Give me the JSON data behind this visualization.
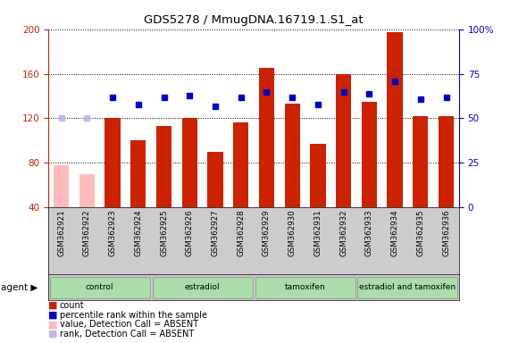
{
  "title": "GDS5278 / MmugDNA.16719.1.S1_at",
  "samples": [
    "GSM362921",
    "GSM362922",
    "GSM362923",
    "GSM362924",
    "GSM362925",
    "GSM362926",
    "GSM362927",
    "GSM362928",
    "GSM362929",
    "GSM362930",
    "GSM362931",
    "GSM362932",
    "GSM362933",
    "GSM362934",
    "GSM362935",
    "GSM362936"
  ],
  "counts": [
    78,
    70,
    120,
    100,
    113,
    120,
    90,
    116,
    165,
    133,
    97,
    160,
    135,
    197,
    122,
    122
  ],
  "ranks": [
    50,
    50,
    62,
    58,
    62,
    63,
    57,
    62,
    65,
    62,
    58,
    65,
    64,
    71,
    61,
    62
  ],
  "absent_mask": [
    true,
    true,
    false,
    false,
    false,
    false,
    false,
    false,
    false,
    false,
    false,
    false,
    false,
    false,
    false,
    false
  ],
  "group_labels": [
    "control",
    "estradiol",
    "tamoxifen",
    "estradiol and tamoxifen"
  ],
  "group_starts": [
    0,
    4,
    8,
    12
  ],
  "group_ends": [
    4,
    8,
    12,
    16
  ],
  "bar_color_present": "#cc2200",
  "bar_color_absent": "#ffbbbb",
  "rank_color_present": "#0000cc",
  "rank_color_absent": "#bbbbee",
  "ylim_left": [
    40,
    200
  ],
  "ylim_right": [
    0,
    100
  ],
  "yticks_left": [
    40,
    80,
    120,
    160,
    200
  ],
  "yticks_right": [
    0,
    25,
    50,
    75,
    100
  ],
  "group_color": "#aaddaa",
  "sample_bg_color": "#cccccc",
  "legend_items": [
    {
      "color": "#cc2200",
      "label": "count"
    },
    {
      "color": "#0000cc",
      "label": "percentile rank within the sample"
    },
    {
      "color": "#ffbbbb",
      "label": "value, Detection Call = ABSENT"
    },
    {
      "color": "#bbbbee",
      "label": "rank, Detection Call = ABSENT"
    }
  ]
}
